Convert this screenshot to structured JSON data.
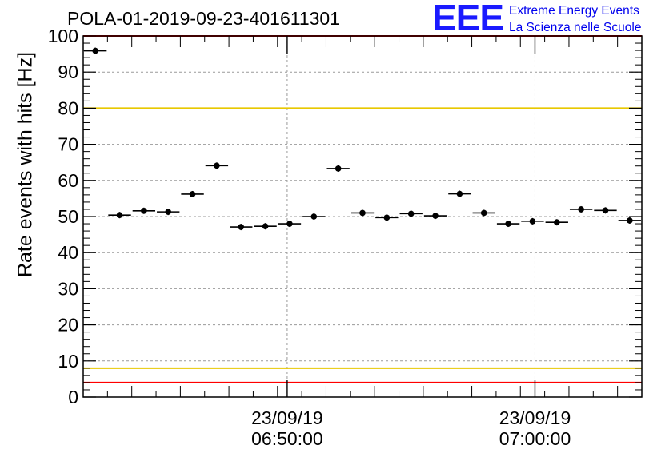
{
  "chart_data": {
    "type": "scatter",
    "title": "POLA-01-2019-09-23-401611301",
    "ylabel": "Rate events with hits [Hz]",
    "xlabel": "",
    "ylim": [
      0,
      100
    ],
    "yticks": [
      "0",
      "10",
      "20",
      "30",
      "40",
      "50",
      "60",
      "70",
      "80",
      "90",
      "100"
    ],
    "grid": true,
    "x_tick_labels": [
      {
        "date": "23/09/19",
        "time": "06:50:00"
      },
      {
        "date": "23/09/19",
        "time": "07:00:00"
      }
    ],
    "points": [
      {
        "index": 1,
        "value": 95.9
      },
      {
        "index": 2,
        "value": 50.4
      },
      {
        "index": 3,
        "value": 51.6
      },
      {
        "index": 4,
        "value": 51.3
      },
      {
        "index": 5,
        "value": 56.2
      },
      {
        "index": 6,
        "value": 64.1
      },
      {
        "index": 7,
        "value": 47.1
      },
      {
        "index": 8,
        "value": 47.3
      },
      {
        "index": 9,
        "value": 48.0
      },
      {
        "index": 10,
        "value": 50.0
      },
      {
        "index": 11,
        "value": 63.3
      },
      {
        "index": 12,
        "value": 51.0
      },
      {
        "index": 13,
        "value": 49.7
      },
      {
        "index": 14,
        "value": 50.8
      },
      {
        "index": 15,
        "value": 50.2
      },
      {
        "index": 16,
        "value": 56.3
      },
      {
        "index": 17,
        "value": 51.0
      },
      {
        "index": 18,
        "value": 48.0
      },
      {
        "index": 19,
        "value": 48.7
      },
      {
        "index": 20,
        "value": 48.4
      },
      {
        "index": 21,
        "value": 52.0
      },
      {
        "index": 22,
        "value": 51.7
      },
      {
        "index": 23,
        "value": 48.9
      }
    ],
    "reference_lines": [
      {
        "value": 100,
        "color": "#ff0000"
      },
      {
        "value": 80,
        "color": "#e8c800"
      },
      {
        "value": 8,
        "color": "#e8c800"
      },
      {
        "value": 4,
        "color": "#ff0000"
      }
    ]
  },
  "logo": {
    "mark": "EEE",
    "line1": "Extreme Energy Events",
    "line2": "La Scienza nelle Scuole",
    "color": "#0000ee"
  }
}
